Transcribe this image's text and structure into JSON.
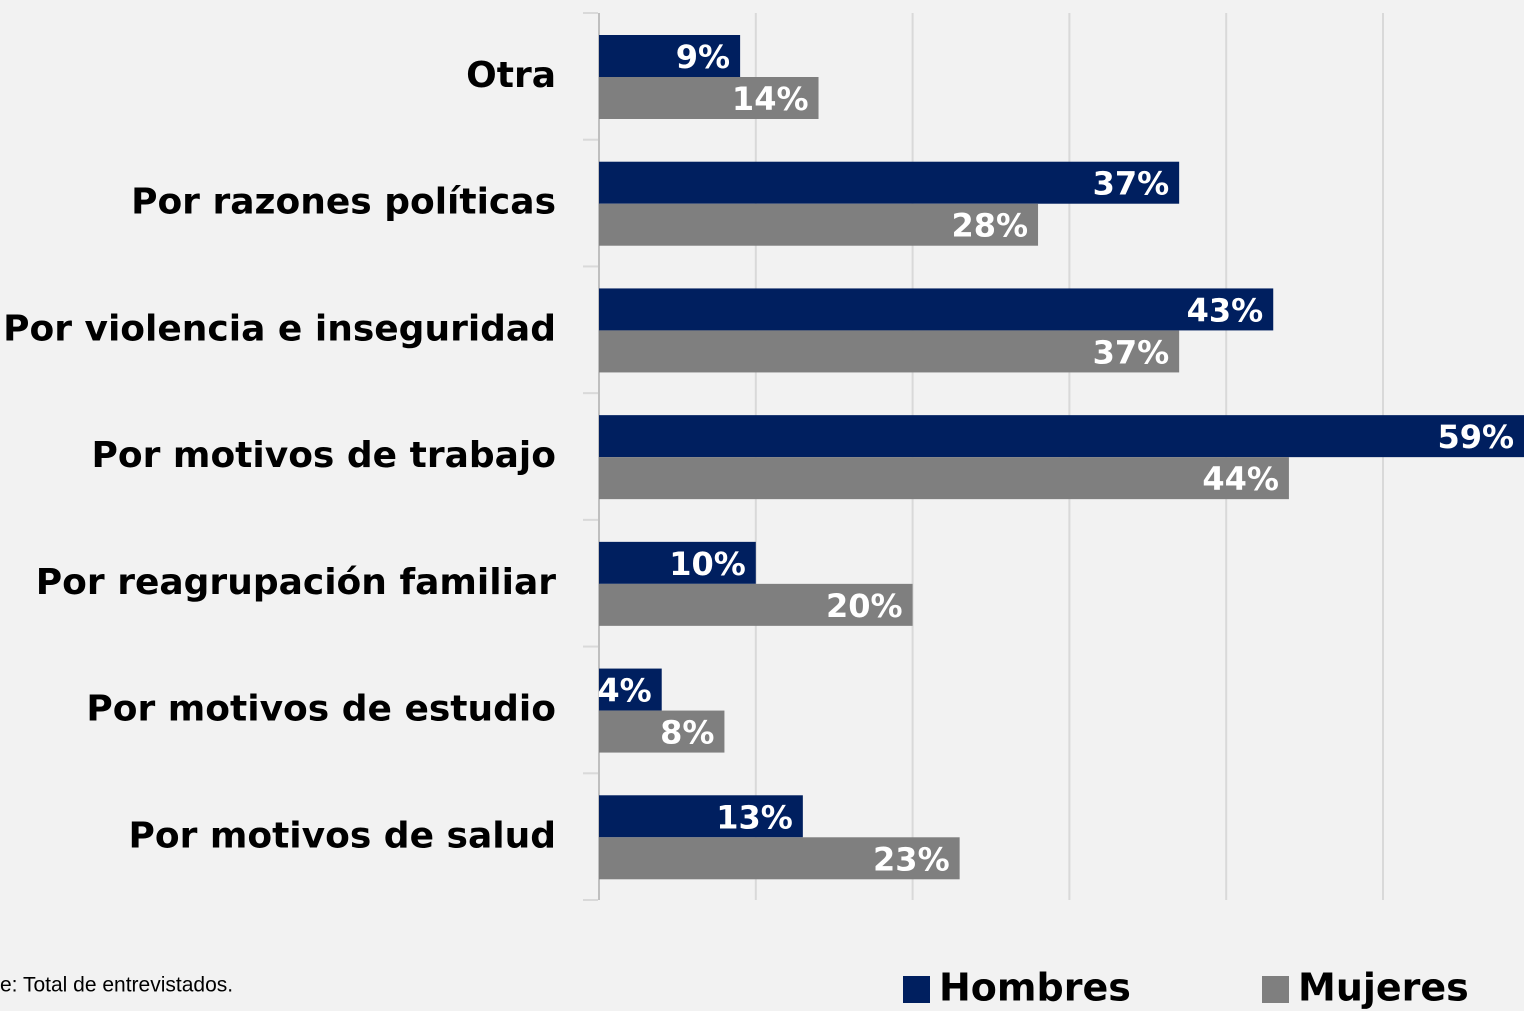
{
  "chart_data": {
    "type": "bar",
    "orientation": "horizontal",
    "categories": [
      "Otra",
      "Por razones políticas",
      "Por violencia e inseguridad",
      "Por motivos de trabajo",
      "Por reagrupación familiar",
      "Por motivos de estudio",
      "Por motivos de salud"
    ],
    "series": [
      {
        "name": "Hombres",
        "color": "#001f5f",
        "values": [
          9,
          37,
          43,
          59,
          10,
          4,
          13
        ],
        "value_labels": [
          "9%",
          "37%",
          "43%",
          "59%",
          "10%",
          "4%",
          "13%"
        ]
      },
      {
        "name": "Mujeres",
        "color": "#7f7f7f",
        "values": [
          14,
          28,
          37,
          44,
          20,
          8,
          23
        ],
        "value_labels": [
          "14%",
          "28%",
          "37%",
          "44%",
          "20%",
          "8%",
          "23%"
        ]
      }
    ],
    "xlim": [
      0,
      60
    ],
    "xticks": [
      0,
      10,
      20,
      30,
      40,
      50
    ],
    "grid": true,
    "note": "e: Total de entrevistados."
  }
}
